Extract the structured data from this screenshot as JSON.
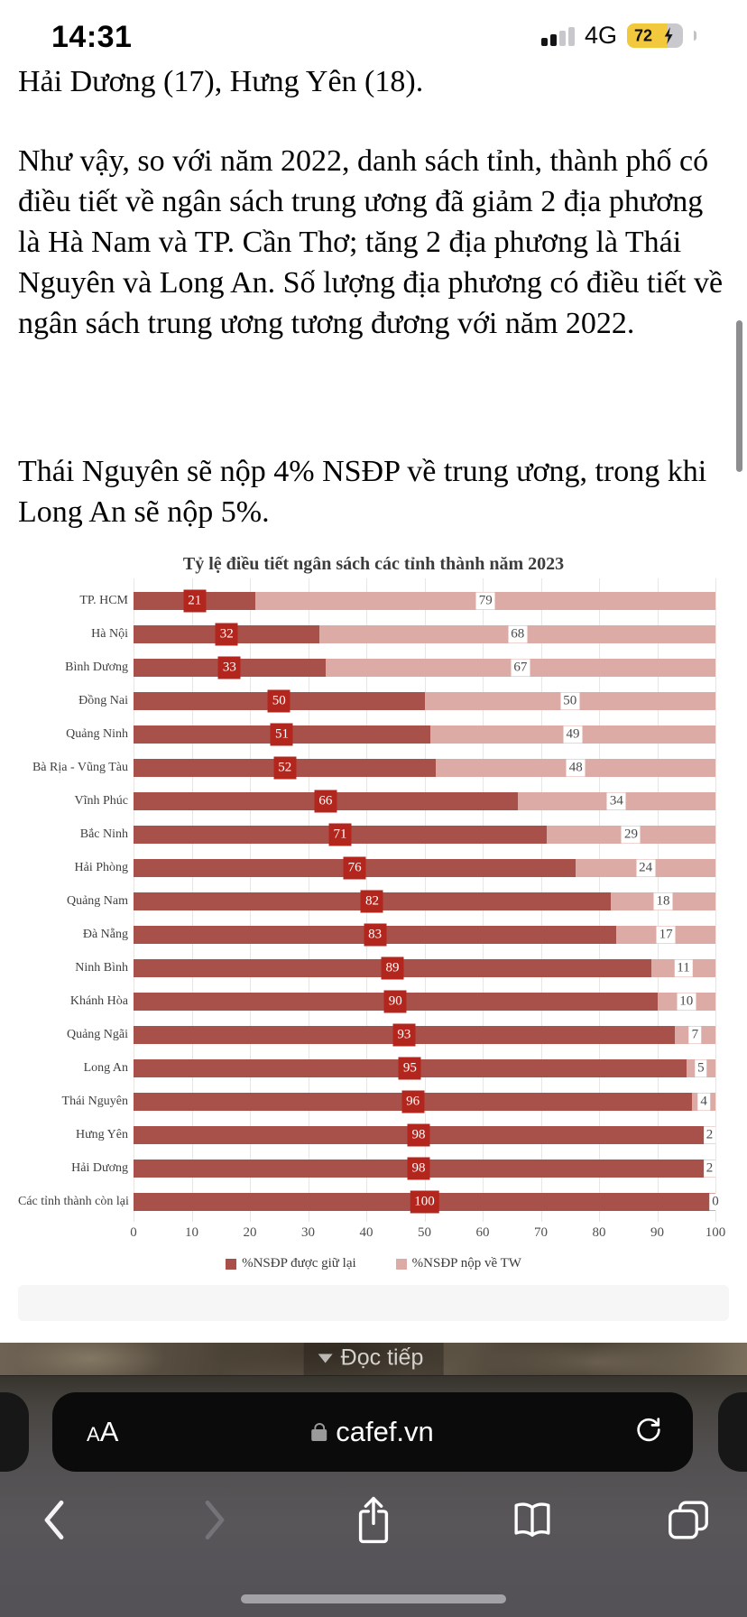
{
  "status_bar": {
    "time": "14:31",
    "network": "4G",
    "battery_percent": "72"
  },
  "article": {
    "intro_line": "Hải Dương (17), Hưng Yên (18).",
    "paragraph_1": "Như vậy, so với năm 2022, danh sách tỉnh, thành phố có điều tiết về ngân sách trung ương đã giảm 2 địa phương là Hà Nam và TP. Cần Thơ; tăng 2 địa phương là Thái Nguyên và Long An. Số lượng địa phương có điều tiết về ngân sách trung ương tương đương với năm 2022.",
    "paragraph_2": "Thái Nguyên sẽ nộp 4% NSĐP về trung ương, trong khi Long An sẽ nộp 5%."
  },
  "chart_data": {
    "type": "bar",
    "orientation": "horizontal",
    "stacked": true,
    "title": "Tỷ lệ điều tiết ngân sách các tỉnh thành năm 2023",
    "categories": [
      "TP. HCM",
      "Hà Nội",
      "Bình Dương",
      "Đồng Nai",
      "Quảng Ninh",
      "Bà Rịa - Vũng Tàu",
      "Vĩnh Phúc",
      "Bắc Ninh",
      "Hải Phòng",
      "Quảng Nam",
      "Đà Nẵng",
      "Ninh Bình",
      "Khánh Hòa",
      "Quảng Ngãi",
      "Long An",
      "Thái Nguyên",
      "Hưng Yên",
      "Hải Dương",
      "Các tỉnh thành còn lại"
    ],
    "series": [
      {
        "name": "%NSĐP được giữ lại",
        "color": "#a8514b",
        "label_bg": "#b3261d",
        "label_color": "#ffffff",
        "values": [
          21,
          32,
          33,
          50,
          51,
          52,
          66,
          71,
          76,
          82,
          83,
          89,
          90,
          93,
          95,
          96,
          98,
          98,
          100
        ]
      },
      {
        "name": "%NSĐP nộp về TW",
        "color": "#dcaba6",
        "label_bg": "#ffffff",
        "label_color": "#4a4a4a",
        "values": [
          79,
          68,
          67,
          50,
          49,
          48,
          34,
          29,
          24,
          18,
          17,
          11,
          10,
          7,
          5,
          4,
          2,
          2,
          0
        ]
      }
    ],
    "x_ticks": [
      "0",
      "10",
      "20",
      "30",
      "40",
      "50",
      "60",
      "70",
      "80",
      "90",
      "100"
    ],
    "xlim": [
      0,
      100
    ],
    "grid": true,
    "legend_position": "bottom"
  },
  "read_more": {
    "label": "Đọc tiếp"
  },
  "browser": {
    "reader_button": "AA",
    "url": "cafef.vn"
  }
}
